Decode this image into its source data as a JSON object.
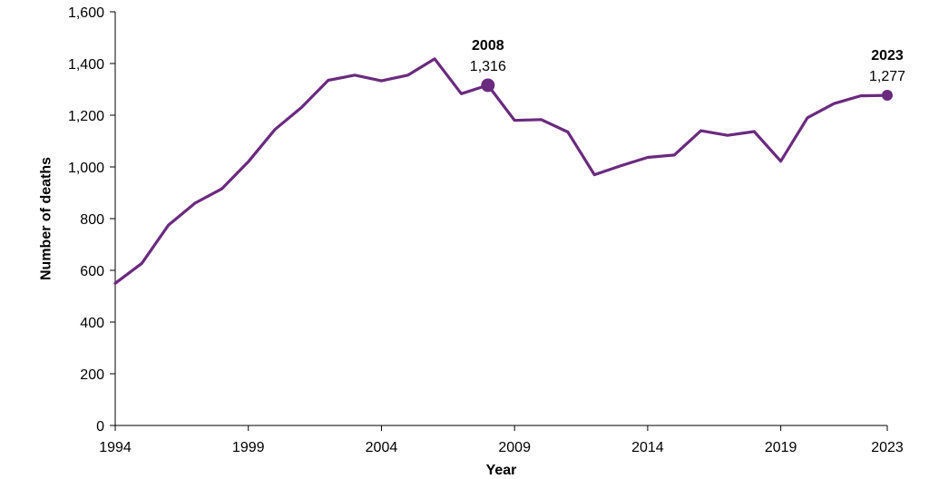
{
  "chart_data": {
    "type": "line",
    "xlabel": "Year",
    "ylabel": "Number of deaths",
    "xlim": [
      1994,
      2023
    ],
    "ylim": [
      0,
      1600
    ],
    "x_ticks": [
      1994,
      1999,
      2004,
      2009,
      2014,
      2019,
      2023
    ],
    "x_tick_labels": [
      "1994",
      "1999",
      "2004",
      "2009",
      "2014",
      "2019",
      "2023"
    ],
    "y_ticks": [
      0,
      200,
      400,
      600,
      800,
      1000,
      1200,
      1400,
      1600
    ],
    "y_tick_labels": [
      "0",
      "200",
      "400",
      "600",
      "800",
      "1,000",
      "1,200",
      "1,400",
      "1,600"
    ],
    "grid": false,
    "line_color": "#6a2a7e",
    "series": [
      {
        "x": [
          1994,
          1995,
          1996,
          1997,
          1998,
          1999,
          2000,
          2001,
          2002,
          2003,
          2004,
          2005,
          2006,
          2007,
          2008,
          2009,
          2010,
          2011,
          2012,
          2013,
          2014,
          2015,
          2016,
          2017,
          2018,
          2019,
          2020,
          2021,
          2022,
          2023
        ],
        "values": [
          550,
          627,
          775,
          860,
          915,
          1020,
          1145,
          1230,
          1335,
          1355,
          1333,
          1355,
          1418,
          1283,
          1316,
          1180,
          1183,
          1135,
          970,
          1005,
          1037,
          1046,
          1140,
          1122,
          1137,
          1022,
          1190,
          1245,
          1275,
          1277
        ]
      }
    ],
    "annotations": [
      {
        "x": 2008,
        "y": 1316,
        "year_label": "2008",
        "value_label": "1,316"
      },
      {
        "x": 2023,
        "y": 1277,
        "year_label": "2023",
        "value_label": "1,277"
      }
    ]
  }
}
